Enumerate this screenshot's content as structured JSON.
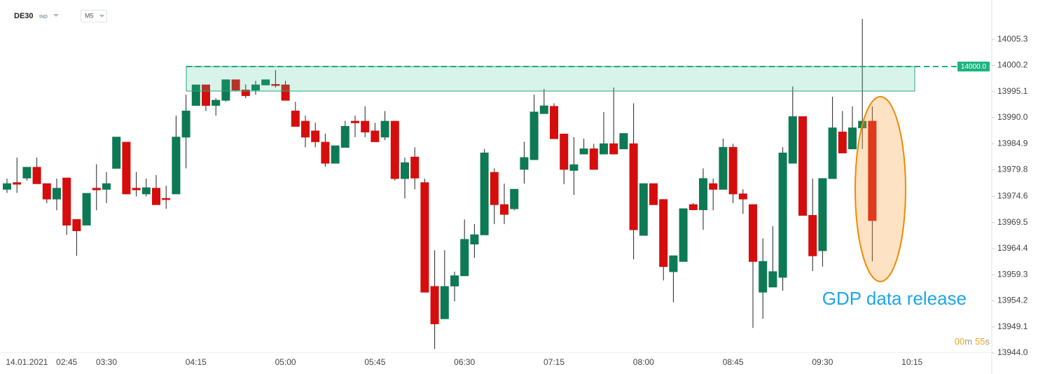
{
  "header": {
    "symbol": "DE30",
    "instrument_type": "IND",
    "timeframe": "M5"
  },
  "chart_data": {
    "type": "candlestick",
    "categories": [
      null,
      null,
      "14.01.2021",
      null,
      null,
      null,
      "02:45",
      null,
      null,
      null,
      "03:30",
      null,
      null,
      null,
      null,
      null,
      null,
      null,
      null,
      "04:15",
      null,
      null,
      null,
      null,
      null,
      null,
      null,
      null,
      "05:00",
      null,
      null,
      null,
      null,
      null,
      null,
      null,
      null,
      "05:45",
      null,
      null,
      null,
      null,
      null,
      null,
      null,
      null,
      "06:30",
      null,
      null,
      null,
      null,
      null,
      null,
      null,
      null,
      "07:15",
      null,
      null,
      null,
      null,
      null,
      null,
      null,
      null,
      "08:00",
      null,
      null,
      null,
      null,
      null,
      null,
      null,
      null,
      "08:45",
      null,
      null,
      null,
      null,
      null,
      null,
      null,
      null,
      "09:30",
      null,
      null,
      null,
      null,
      null,
      null,
      null,
      null,
      "10:15"
    ],
    "open": [
      13976.0,
      13977.3,
      13978.2,
      13980.3,
      13977.1,
      13974.1,
      13978.2,
      13970.1,
      13969.0,
      13976.2,
      13976.0,
      13980.1,
      13985.2,
      13976.2,
      13975.1,
      13976.2,
      13974.2,
      13975.1,
      13986.2,
      13992.4,
      13996.4,
      13992.4,
      13993.4,
      13997.4,
      13995.4,
      13995.4,
      13996.4,
      13996.5,
      13996.4,
      13991.3,
      13989.3,
      13987.4,
      13985.2,
      13981.1,
      13984.2,
      13989.3,
      13989.3,
      13987.4,
      13986.2,
      13989.3,
      13978.1,
      13982.3,
      13977.3,
      13957.0,
      13950.7,
      13957.1,
      13959.1,
      13965.3,
      13967.1,
      13979.3,
      13973.0,
      13972.2,
      13979.9,
      13981.8,
      13990.8,
      13992.2,
      13986.8,
      13979.7,
      13982.9,
      13983.9,
      13982.9,
      13984.9,
      13983.9,
      13984.9,
      13967.0,
      13977.1,
      13974.0,
      13959.9,
      13961.9,
      13973.0,
      13972.0,
      13977.1,
      13976.0,
      13984.2,
      13975.1,
      13973.0,
      13955.9,
      13956.9,
      13958.8,
      13981.1,
      13990.2,
      13970.9,
      13964.0,
      13978.1,
      13987.2,
      13983.9,
      13988.0,
      13989.3,
      null,
      null,
      null,
      null
    ],
    "high": [
      13978.1,
      13982.2,
      13980.3,
      13982.2,
      13977.1,
      13978.1,
      13978.2,
      13970.1,
      13975.2,
      13980.9,
      13979.4,
      13986.2,
      13985.2,
      13979.4,
      13978.1,
      13978.8,
      13976.7,
      13990.4,
      13994.5,
      13996.4,
      13996.4,
      13993.8,
      13997.4,
      13997.4,
      13996.5,
      13997.2,
      13997.4,
      13999.3,
      13997.2,
      13993.1,
      13990.4,
      13989.0,
      13986.9,
      13984.5,
      13989.4,
      13990.4,
      13992.2,
      13989.0,
      13991.3,
      13989.3,
      13982.2,
      13984.2,
      13978.1,
      13964.1,
      13964.1,
      13959.9,
      13970.1,
      13969.2,
      13983.9,
      13980.1,
      13977.1,
      13976.0,
      13985.3,
      13994.5,
      13995.6,
      13992.8,
      13986.8,
      13986.2,
      13985.9,
      13984.9,
      13991.1,
      13995.9,
      13986.9,
      13992.8,
      13977.1,
      13977.1,
      13974.0,
      13963.0,
      13972.2,
      13973.3,
      13980.1,
      13978.1,
      13985.9,
      13984.9,
      13976.0,
      13973.0,
      13966.4,
      13968.8,
      13984.2,
      13996.1,
      13990.2,
      13978.1,
      13978.1,
      13994.1,
      13991.3,
      13992.2,
      14009.3,
      13992.2,
      null,
      null,
      null,
      null
    ],
    "low": [
      13975.3,
      13975.3,
      13977.7,
      13977.1,
      13973.3,
      13971.9,
      13967.1,
      13963.0,
      13969.0,
      13971.9,
      13973.3,
      13980.1,
      13975.1,
      13974.6,
      13974.6,
      13973.0,
      13972.2,
      13975.1,
      13980.1,
      13992.4,
      13991.3,
      13990.4,
      13993.1,
      13995.2,
      13993.8,
      13994.5,
      13996.4,
      13995.9,
      13993.4,
      13988.3,
      13984.2,
      13984.2,
      13980.4,
      13981.1,
      13984.2,
      13986.2,
      13986.2,
      13985.3,
      13985.6,
      13977.7,
      13974.2,
      13976.0,
      13955.9,
      13944.8,
      13950.7,
      13954.1,
      13959.1,
      13962.6,
      13967.1,
      13969.2,
      13969.2,
      13971.9,
      13977.1,
      13981.8,
      13990.8,
      13985.9,
      13977.0,
      13974.9,
      13982.9,
      13979.9,
      13982.9,
      13982.9,
      13983.9,
      13962.3,
      13967.0,
      13972.9,
      13958.2,
      13953.9,
      13961.9,
      13971.9,
      13968.1,
      13971.9,
      13976.0,
      13973.3,
      13971.2,
      13948.9,
      13950.7,
      13956.9,
      13956.2,
      13981.1,
      13970.9,
      13960.0,
      13960.9,
      13978.1,
      13983.1,
      13983.9,
      13983.9,
      13961.9,
      null,
      null,
      null,
      null
    ],
    "close": [
      13977.1,
      13977.0,
      13980.3,
      13977.1,
      13974.1,
      13976.2,
      13969.0,
      13967.9,
      13975.2,
      13975.9,
      13977.1,
      13986.2,
      13975.1,
      13975.9,
      13976.3,
      13973.0,
      13974.0,
      13986.2,
      13991.3,
      13996.4,
      13992.4,
      13993.4,
      13997.4,
      13995.4,
      13994.3,
      13996.4,
      13997.4,
      13996.4,
      13993.4,
      13988.3,
      13986.2,
      13985.3,
      13981.1,
      13984.5,
      13988.3,
      13989.0,
      13987.2,
      13985.3,
      13989.3,
      13978.1,
      13981.2,
      13978.2,
      13955.9,
      13949.7,
      13957.0,
      13959.1,
      13966.2,
      13967.1,
      13983.1,
      13973.0,
      13971.1,
      13976.0,
      13982.2,
      13991.1,
      13992.3,
      13985.9,
      13979.9,
      13980.8,
      13983.9,
      13979.9,
      13984.9,
      13982.9,
      13986.9,
      13968.1,
      13977.1,
      13973.0,
      13960.9,
      13963.0,
      13972.2,
      13972.0,
      13978.1,
      13976.0,
      13984.2,
      13975.1,
      13974.1,
      13961.9,
      13961.9,
      13959.9,
      13983.1,
      13990.2,
      13970.9,
      13963.0,
      13978.1,
      13988.0,
      13983.1,
      13988.0,
      13989.3,
      13969.9,
      null,
      null,
      null,
      null
    ],
    "up_color": "#0d7a55",
    "down_color": "#d60d0d",
    "ylim": [
      13942.5,
      14013.0
    ],
    "yticks": [
      {
        "value": 13944,
        "label": "13944.0"
      },
      13949.1,
      13954.2,
      13959.3,
      13964.4,
      13969.5,
      13974.6,
      13979.8,
      13984.9,
      {
        "value": 13990,
        "label": "13990.0"
      },
      13995.1,
      14000.2,
      14005.3
    ],
    "zone": {
      "low": 13995.2,
      "high": 14000.0
    },
    "price_line": {
      "value": 14000,
      "label": "14000.0"
    },
    "annotation": "GDP data release",
    "timer": {
      "minutes": "00",
      "minutes_unit": "m",
      "seconds": "55",
      "seconds_unit": "s"
    }
  }
}
